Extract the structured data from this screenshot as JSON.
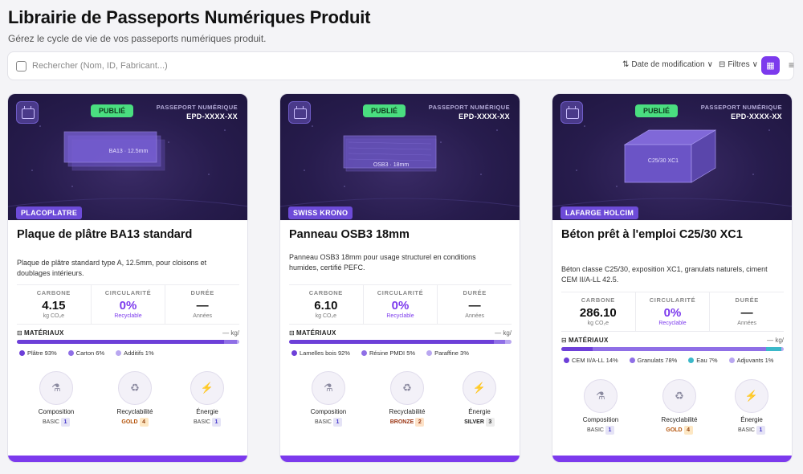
{
  "header": {
    "title": "Librairie de Passeports Numériques Produit",
    "subtitle": "Gérez le cycle de vie de vos passeports numériques produit."
  },
  "toolbar": {
    "search_placeholder": "Rechercher (Nom, ID, Fabricant...)",
    "sort_label": "Date de modification",
    "filter_label": "Filtres"
  },
  "labels": {
    "passport": "PASSEPORT NUMÉRIQUE",
    "carbon": "CARBONE",
    "circularity": "CIRCULARITÉ",
    "duration": "DURÉE",
    "carbon_unit": "kg CO₂e",
    "recyclable": "Recyclable",
    "years": "Années",
    "materials": "MATÉRIAUX",
    "mass_unit": "— kg/",
    "composition": "Composition",
    "recyclability": "Recyclabilité",
    "energy": "Énergie"
  },
  "cards": [
    {
      "status": "PUBLIÉ",
      "passport_id": "EPD-XXXX-XX",
      "hero_label": "BA13 · 12.5mm",
      "manufacturer": "PLACOPLATRE",
      "title": "Plaque de plâtre BA13 standard",
      "description": "Plaque de plâtre standard type A, 12.5mm, pour cloisons et doublages intérieurs.",
      "carbon": "4.15",
      "circularity": "0%",
      "duration": "—",
      "materials": [
        {
          "label": "Plâtre 93%",
          "share": 93,
          "color": "#6d3fd8"
        },
        {
          "label": "Carton 6%",
          "share": 6,
          "color": "#8f6fe6"
        },
        {
          "label": "Additifs 1%",
          "share": 1,
          "color": "#b9a7f0"
        }
      ],
      "scores": [
        {
          "level": "BASIC",
          "num": "1"
        },
        {
          "level": "GOLD",
          "num": "4"
        },
        {
          "level": "BASIC",
          "num": "1"
        }
      ]
    },
    {
      "status": "PUBLIÉ",
      "passport_id": "EPD-XXXX-XX",
      "hero_label": "OSB3 · 18mm",
      "manufacturer": "SWISS KRONO",
      "title": "Panneau OSB3 18mm",
      "description": "Panneau OSB3 18mm pour usage structurel en conditions humides, certifié PEFC.",
      "carbon": "6.10",
      "circularity": "0%",
      "duration": "—",
      "materials": [
        {
          "label": "Lamelles bois 92%",
          "share": 92,
          "color": "#6d3fd8"
        },
        {
          "label": "Résine PMDI 5%",
          "share": 5,
          "color": "#8f6fe6"
        },
        {
          "label": "Paraffine 3%",
          "share": 3,
          "color": "#b9a7f0"
        }
      ],
      "scores": [
        {
          "level": "BASIC",
          "num": "1"
        },
        {
          "level": "BRONZE",
          "num": "2"
        },
        {
          "level": "SILVER",
          "num": "3"
        }
      ]
    },
    {
      "status": "PUBLIÉ",
      "passport_id": "EPD-XXXX-XX",
      "hero_label": "C25/30 XC1",
      "manufacturer": "LAFARGE HOLCIM",
      "title": "Béton prêt à l'emploi C25/30 XC1",
      "description": "Béton classe C25/30, exposition XC1, granulats naturels, ciment CEM II/A-LL 42.5.",
      "carbon": "286.10",
      "circularity": "0%",
      "duration": "—",
      "materials": [
        {
          "label": "CEM II/A-LL 14%",
          "share": 14,
          "color": "#6d3fd8"
        },
        {
          "label": "Granulats 78%",
          "share": 78,
          "color": "#8f6fe6"
        },
        {
          "label": "Eau 7%",
          "share": 7,
          "color": "#3bb8c9"
        },
        {
          "label": "Adjuvants 1%",
          "share": 1,
          "color": "#b9a7f0"
        }
      ],
      "scores": [
        {
          "level": "BASIC",
          "num": "1"
        },
        {
          "level": "GOLD",
          "num": "4"
        },
        {
          "level": "BASIC",
          "num": "1"
        }
      ]
    }
  ]
}
